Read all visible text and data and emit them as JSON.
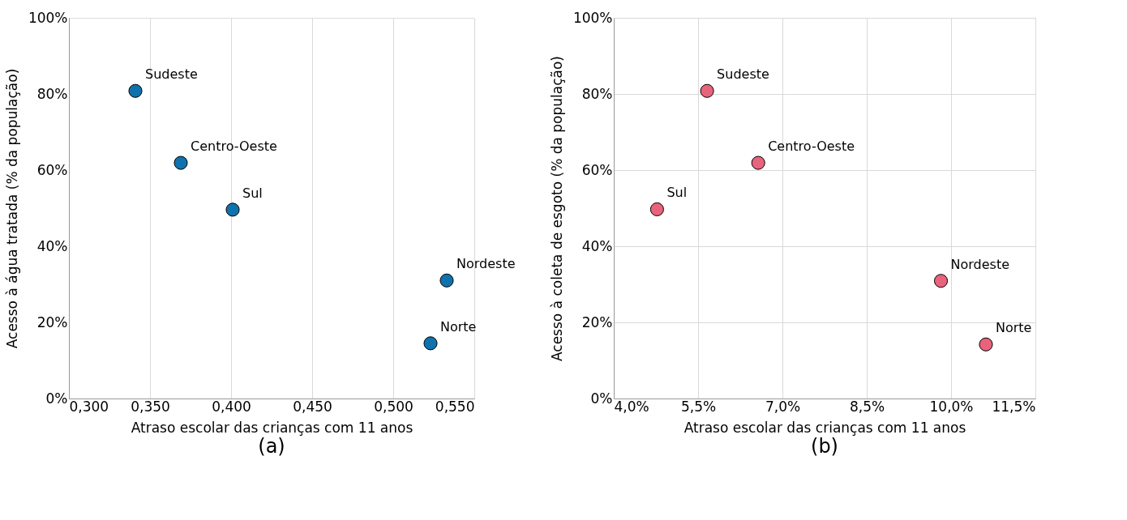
{
  "chart_data": [
    {
      "type": "scatter",
      "xlabel": "Atraso escolar das crianças com 11 anos",
      "ylabel": "Acesso à água tratada (% da população)",
      "x": [
        0.341,
        0.369,
        0.401,
        0.533,
        0.523
      ],
      "series": [
        {
          "color": "#0f72ad",
          "values": [
            80.8,
            61.9,
            49.6,
            31.0,
            14.5
          ]
        }
      ],
      "xlim": [
        0.3,
        0.55
      ],
      "xticks": [
        {
          "value": 0.3,
          "label": "0,300"
        },
        {
          "value": 0.35,
          "label": "0,350"
        },
        {
          "value": 0.4,
          "label": "0,400"
        },
        {
          "value": 0.45,
          "label": "0,450"
        },
        {
          "value": 0.5,
          "label": "0,500"
        },
        {
          "value": 0.55,
          "label": "0,550"
        }
      ],
      "ylim": [
        0,
        100
      ],
      "yticks": [
        {
          "value": 0,
          "label": "0%"
        },
        {
          "value": 20,
          "label": "20%"
        },
        {
          "value": 40,
          "label": "40%"
        },
        {
          "value": 60,
          "label": "60%"
        },
        {
          "value": 80,
          "label": "80%"
        },
        {
          "value": 100,
          "label": "100%"
        }
      ],
      "grid": "x",
      "marker": "circle",
      "annotations": [
        {
          "text": "Sudeste",
          "x": 0.341,
          "y": 80.8
        },
        {
          "text": "Centro-Oeste",
          "x": 0.369,
          "y": 61.9
        },
        {
          "text": "Sul",
          "x": 0.401,
          "y": 49.6
        },
        {
          "text": "Nordeste",
          "x": 0.533,
          "y": 31.0
        },
        {
          "text": "Norte",
          "x": 0.523,
          "y": 14.5
        },
        "(a)"
      ]
    },
    {
      "type": "scatter",
      "xlabel": "Atraso escolar das crianças com 11 anos",
      "ylabel": "Acesso à coleta de esgoto (% da população)",
      "x": [
        5.66,
        6.57,
        4.77,
        9.82,
        10.62
      ],
      "series": [
        {
          "color": "#e8637c",
          "values": [
            80.8,
            61.9,
            49.7,
            30.9,
            14.2
          ]
        }
      ],
      "xlim": [
        4.0,
        11.5
      ],
      "xticks": [
        {
          "value": 4.0,
          "label": "4,0%"
        },
        {
          "value": 5.5,
          "label": "5,5%"
        },
        {
          "value": 7.0,
          "label": "7,0%"
        },
        {
          "value": 8.5,
          "label": "8,5%"
        },
        {
          "value": 10.0,
          "label": "10,0%"
        },
        {
          "value": 11.5,
          "label": "11,5%"
        }
      ],
      "ylim": [
        0,
        100
      ],
      "yticks": [
        {
          "value": 0,
          "label": "0%"
        },
        {
          "value": 20,
          "label": "20%"
        },
        {
          "value": 40,
          "label": "40%"
        },
        {
          "value": 60,
          "label": "60%"
        },
        {
          "value": 80,
          "label": "80%"
        },
        {
          "value": 100,
          "label": "100%"
        }
      ],
      "grid": true,
      "marker": "circle",
      "annotations": [
        {
          "text": "Sudeste",
          "x": 5.66,
          "y": 80.8
        },
        {
          "text": "Centro-Oeste",
          "x": 6.57,
          "y": 61.9
        },
        {
          "text": "Sul",
          "x": 4.77,
          "y": 49.7
        },
        {
          "text": "Nordeste",
          "x": 9.82,
          "y": 30.9
        },
        {
          "text": "Norte",
          "x": 10.62,
          "y": 14.2
        },
        "(b)"
      ]
    }
  ]
}
